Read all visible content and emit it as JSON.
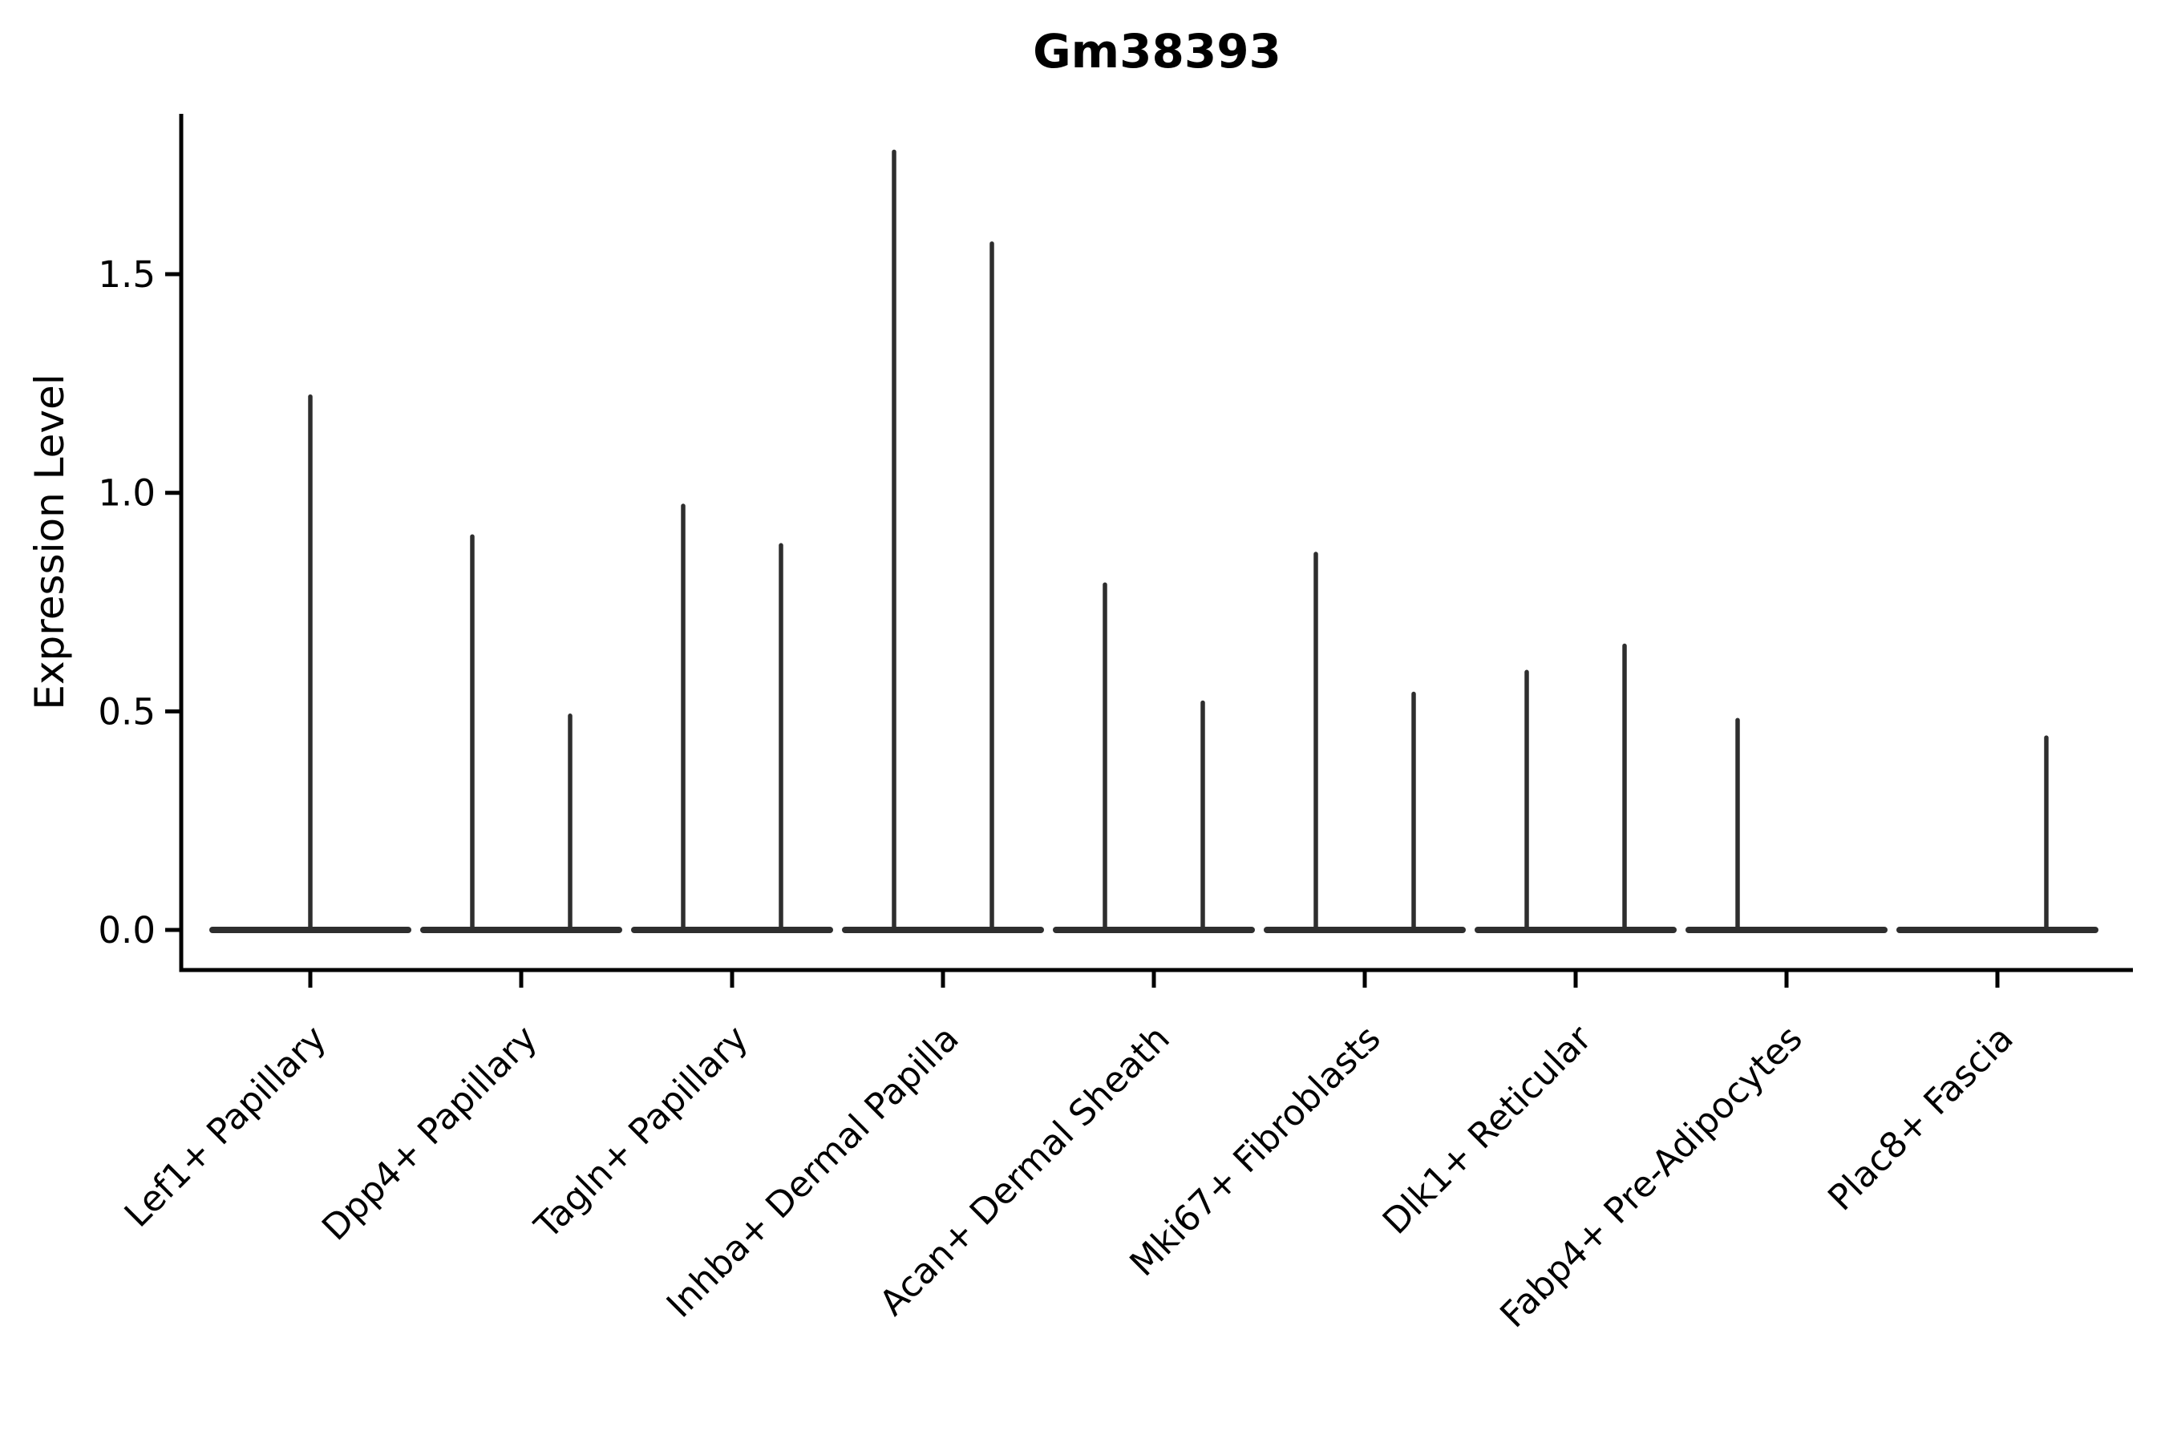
{
  "chart_data": {
    "type": "violin",
    "title": "Gm38393",
    "xlabel": "",
    "ylabel": "Expression Level",
    "ytick_labels": [
      "0.0",
      "0.5",
      "1.0",
      "1.5"
    ],
    "ytick_values": [
      0.0,
      0.5,
      1.0,
      1.5
    ],
    "ylim": [
      -0.09,
      1.87
    ],
    "grid": false,
    "legend": "none",
    "x_tick_rotation": 45,
    "line_color": "#2e2e2e",
    "axis_color": "#000000",
    "background_color": "#ffffff",
    "categories": [
      "Lef1+ Papillary",
      "Dpp4+ Papillary",
      "Tagln+ Papillary",
      "Inhba+ Dermal Papilla",
      "Acan+ Dermal Sheath",
      "Mki67+ Fibroblasts",
      "Dlk1+ Reticular",
      "Fabp4+ Pre-Adipocytes",
      "Plac8+ Fascia"
    ],
    "violins": [
      {
        "category": "Lef1+ Papillary",
        "baseline_value": 0,
        "spikes": [
          {
            "position": "center",
            "max": 1.22
          }
        ]
      },
      {
        "category": "Dpp4+ Papillary",
        "baseline_value": 0,
        "spikes": [
          {
            "position": "left",
            "max": 0.9
          },
          {
            "position": "right",
            "max": 0.49
          }
        ]
      },
      {
        "category": "Tagln+ Papillary",
        "baseline_value": 0,
        "spikes": [
          {
            "position": "left",
            "max": 0.97
          },
          {
            "position": "right",
            "max": 0.88
          }
        ]
      },
      {
        "category": "Inhba+ Dermal Papilla",
        "baseline_value": 0,
        "spikes": [
          {
            "position": "left",
            "max": 1.78
          },
          {
            "position": "right",
            "max": 1.57
          }
        ]
      },
      {
        "category": "Acan+ Dermal Sheath",
        "baseline_value": 0,
        "spikes": [
          {
            "position": "left",
            "max": 0.79
          },
          {
            "position": "right",
            "max": 0.52
          }
        ]
      },
      {
        "category": "Mki67+ Fibroblasts",
        "baseline_value": 0,
        "spikes": [
          {
            "position": "left",
            "max": 0.86
          },
          {
            "position": "right",
            "max": 0.54
          }
        ]
      },
      {
        "category": "Dlk1+ Reticular",
        "baseline_value": 0,
        "spikes": [
          {
            "position": "left",
            "max": 0.59
          },
          {
            "position": "right",
            "max": 0.65
          }
        ]
      },
      {
        "category": "Fabp4+ Pre-Adipocytes",
        "baseline_value": 0,
        "spikes": [
          {
            "position": "left",
            "max": 0.48
          }
        ]
      },
      {
        "category": "Plac8+ Fascia",
        "baseline_value": 0,
        "spikes": [
          {
            "position": "right",
            "max": 0.44
          }
        ]
      }
    ]
  }
}
